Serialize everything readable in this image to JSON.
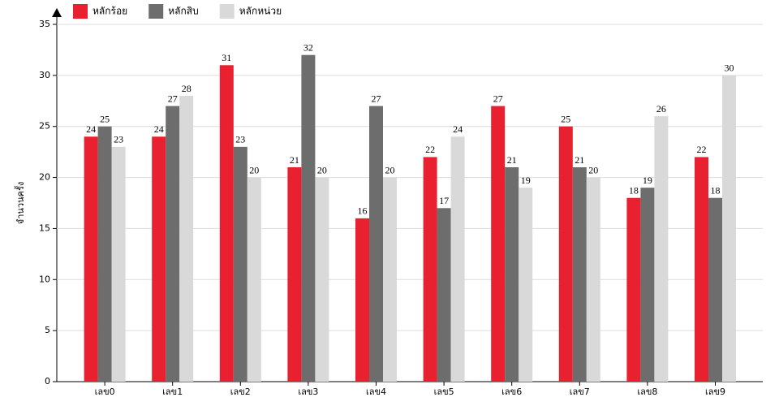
{
  "chart_data": {
    "type": "bar",
    "y_label": "จำนวนครั้ง",
    "categories": [
      "เลข0",
      "เลข1",
      "เลข2",
      "เลข3",
      "เลข4",
      "เลข5",
      "เลข6",
      "เลข7",
      "เลข8",
      "เลข9"
    ],
    "series": [
      {
        "name": "หลักร้อย",
        "color": "#e8202f",
        "values": [
          24,
          24,
          31,
          21,
          16,
          22,
          27,
          25,
          18,
          22
        ]
      },
      {
        "name": "หลักสิบ",
        "color": "#6d6d6d",
        "values": [
          25,
          27,
          23,
          32,
          27,
          17,
          21,
          21,
          19,
          18
        ]
      },
      {
        "name": "หลักหน่วย",
        "color": "#d9d9d9",
        "values": [
          23,
          28,
          20,
          20,
          20,
          24,
          19,
          20,
          26,
          30
        ]
      }
    ],
    "ylim": [
      0,
      35
    ],
    "yticks": [
      0,
      5,
      10,
      15,
      20,
      25,
      30,
      35
    ],
    "grid": true
  }
}
